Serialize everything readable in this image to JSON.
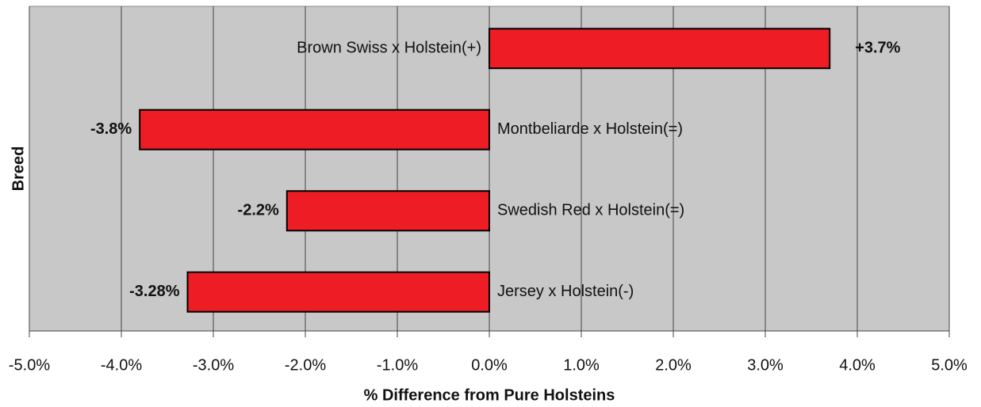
{
  "chart_data": {
    "type": "barh",
    "categories": [
      "Brown Swiss x Holstein(+)",
      "Montbeliarde x Holstein(=)",
      "Swedish Red x Holstein(=)",
      "Jersey x Holstein(-)"
    ],
    "values": [
      3.7,
      -3.8,
      -2.2,
      -3.28
    ],
    "value_labels": [
      "+3.7%",
      "-3.8%",
      "-2.2%",
      "-3.28%"
    ],
    "color": "#ee1c25",
    "xlabel": "% Difference from Pure Holsteins",
    "ylabel": "Breed",
    "xlim": [
      -5,
      5
    ],
    "xticks": [
      {
        "value": -5,
        "label": "-5.0%"
      },
      {
        "value": -4,
        "label": "-4.0%"
      },
      {
        "value": -3,
        "label": "-3.0%"
      },
      {
        "value": -2,
        "label": "-2.0%"
      },
      {
        "value": -1,
        "label": "-1.0%"
      },
      {
        "value": 0,
        "label": "0.0%"
      },
      {
        "value": 1,
        "label": "1.0%"
      },
      {
        "value": 2,
        "label": "2.0%"
      },
      {
        "value": 3,
        "label": "3.0%"
      },
      {
        "value": 4,
        "label": "4.0%"
      },
      {
        "value": 5,
        "label": "5.0%"
      }
    ],
    "grid": true
  }
}
